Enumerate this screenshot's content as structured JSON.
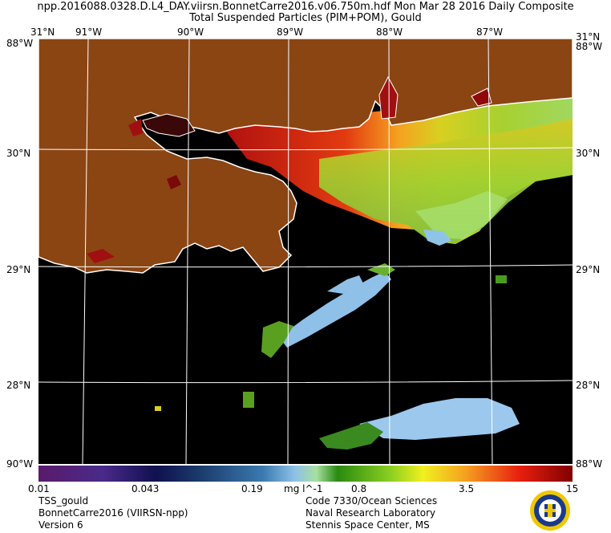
{
  "header": {
    "line1": "npp.2016088.0328.D.L4_DAY.viirsn.BonnetCarre2016.v06.750m.hdf   Mon Mar 28 2016 Daily Composite",
    "line2": "Total Suspended Particles (PIM+POM), Gould"
  },
  "map": {
    "lon_labels": [
      "91°W",
      "90°W",
      "89°W",
      "88°W",
      "87°W"
    ],
    "lat_labels": [
      "30°N",
      "29°N",
      "28°N"
    ],
    "corner_top_left": "31°N",
    "corner_top_right": "31°N",
    "corner_edge": "88°W",
    "corner_bottom": "90°W",
    "colors": {
      "land": "#8b4513",
      "water_no_data": "#000000",
      "coastline": "#ffffff",
      "grid": "#ffffff"
    }
  },
  "colorbar": {
    "ticks": [
      "0.01",
      "0.043",
      "0.19",
      "mg l^-1",
      "0.8",
      "3.5",
      "15"
    ],
    "scale": "log",
    "range": [
      0.01,
      15
    ]
  },
  "footer": {
    "left": [
      "TSS_gould",
      "BonnetCarre2016 (VIIRSN-npp)",
      "Version 6"
    ],
    "right": [
      "Code 7330/Ocean Sciences",
      "Naval Research Laboratory",
      "Stennis Space Center, MS"
    ]
  }
}
